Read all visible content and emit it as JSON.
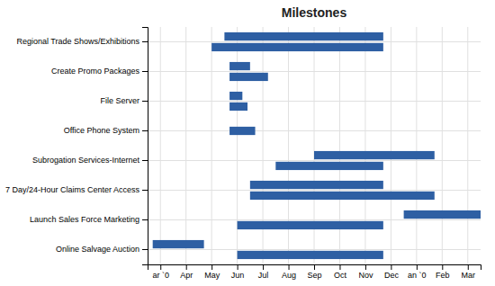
{
  "chart_data": {
    "type": "gantt",
    "title": "Milestones",
    "orientation": "horizontal",
    "color": "#2E5FA3",
    "grid": true,
    "categories": [
      "Regional Trade Shows/Exhibitions",
      "Create Promo Packages",
      "File Server",
      "Office Phone System",
      "Subrogation Services-Internet",
      "7 Day/24-Hour Claims Center Access",
      "Launch Sales Force Marketing",
      "Online Salvage Auction"
    ],
    "values": [
      [
        [
          2.0,
          8.7
        ],
        [
          2.5,
          8.7
        ]
      ],
      [
        [
          2.7,
          4.2
        ],
        [
          2.7,
          3.5
        ]
      ],
      [
        [
          2.7,
          3.4
        ],
        [
          2.7,
          3.2
        ]
      ],
      [
        [
          2.7,
          3.7
        ]
      ],
      [
        [
          4.5,
          8.7
        ],
        [
          6.0,
          10.7
        ]
      ],
      [
        [
          3.5,
          10.7
        ],
        [
          3.5,
          8.7
        ]
      ],
      [
        [
          3.0,
          8.7
        ],
        [
          9.5,
          12.5
        ]
      ],
      [
        [
          3.0,
          8.7
        ],
        [
          -0.3,
          1.7
        ]
      ]
    ],
    "xlim": [
      -0.5,
      12.5
    ],
    "xticks": [
      {
        "value": 0,
        "label": "ar `0"
      },
      {
        "value": 1,
        "label": "Apr"
      },
      {
        "value": 2,
        "label": "May"
      },
      {
        "value": 3,
        "label": "Jun"
      },
      {
        "value": 4,
        "label": "Jul"
      },
      {
        "value": 5,
        "label": "Aug"
      },
      {
        "value": 6,
        "label": "Sep"
      },
      {
        "value": 7,
        "label": "Oct"
      },
      {
        "value": 8,
        "label": "Nov"
      },
      {
        "value": 9,
        "label": "Dec"
      },
      {
        "value": 10,
        "label": "an `0"
      },
      {
        "value": 11,
        "label": "Feb"
      },
      {
        "value": 12,
        "label": "Mar"
      }
    ]
  }
}
